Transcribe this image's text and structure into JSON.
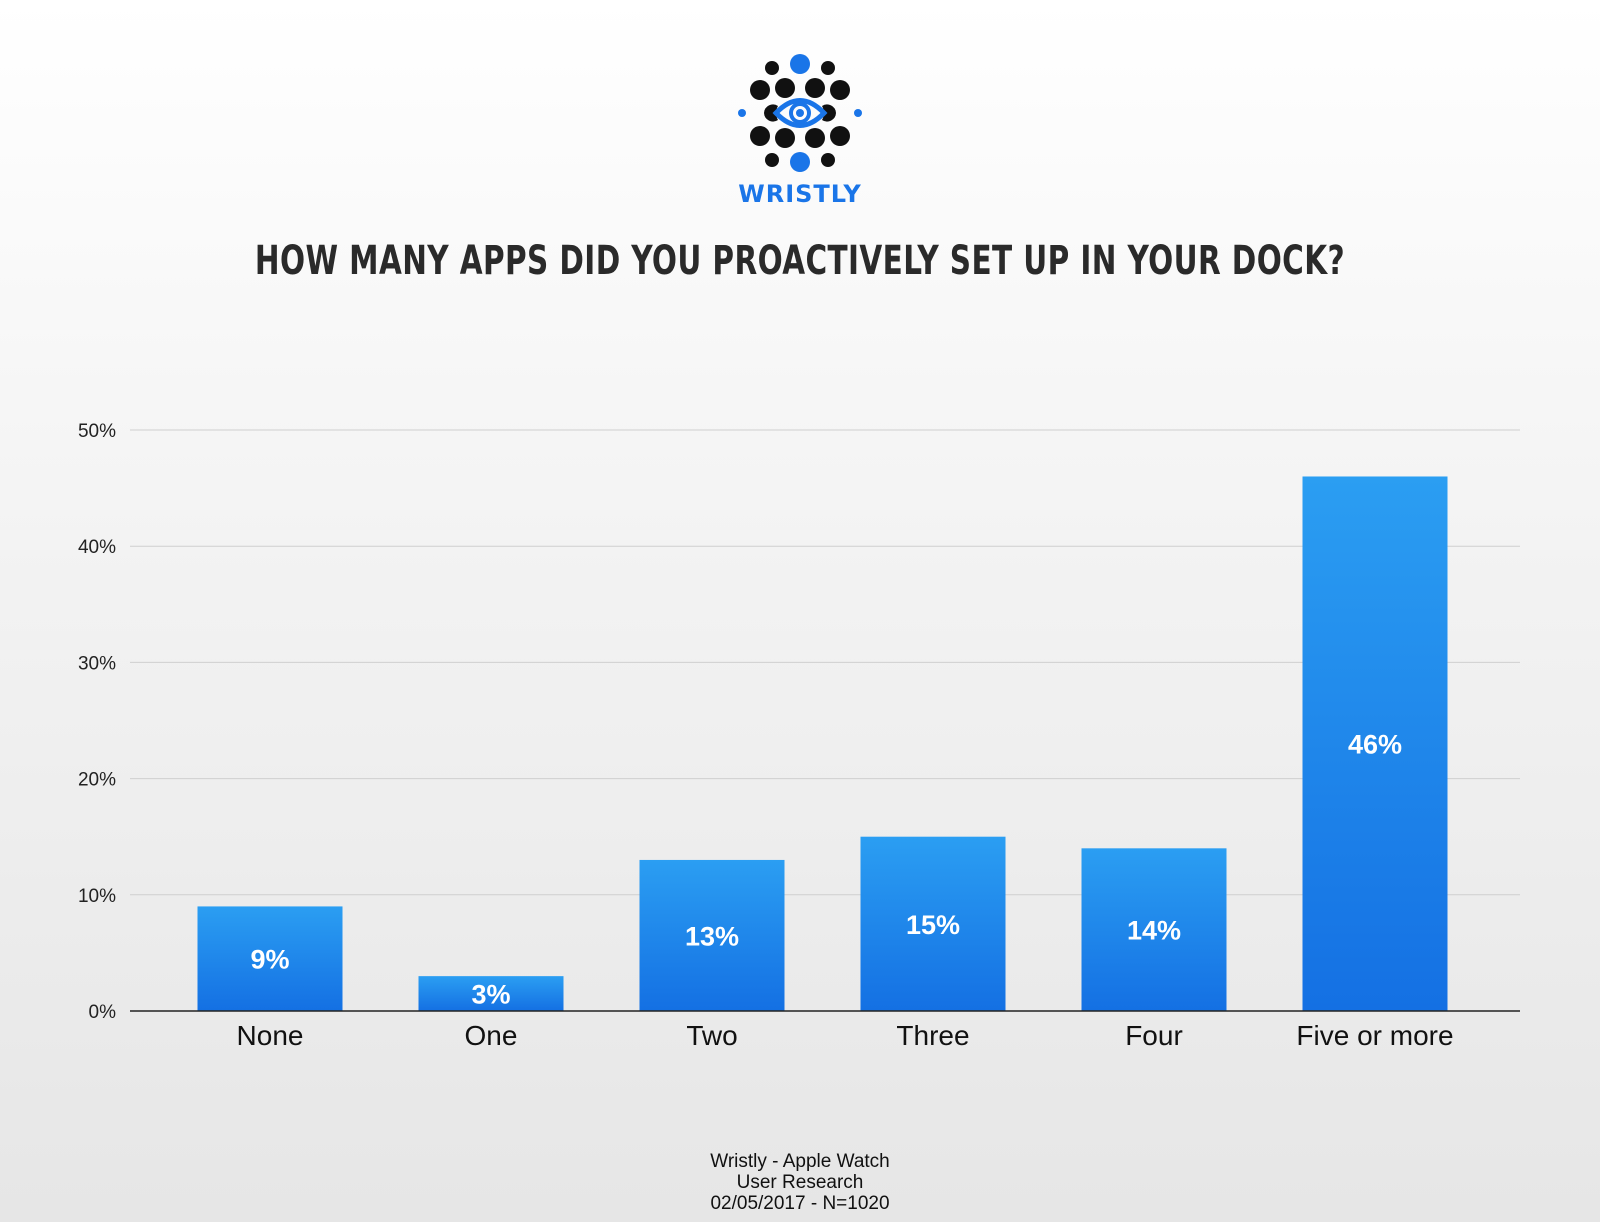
{
  "brand": {
    "name": "WRISTLY",
    "accent_color": "#1a75e8",
    "logo_icon": "eye-in-dots-logo"
  },
  "title": "HOW MANY APPS DID YOU PROACTIVELY SET UP IN YOUR DOCK?",
  "footer": {
    "line1": "Wristly - Apple Watch",
    "line2": "User Research",
    "line3": "02/05/2017 - N=1020"
  },
  "chart_data": {
    "type": "bar",
    "categories": [
      "None",
      "One",
      "Two",
      "Three",
      "Four",
      "Five or more"
    ],
    "values": [
      9,
      3,
      13,
      15,
      14,
      46
    ],
    "data_labels": [
      "9%",
      "3%",
      "13%",
      "15%",
      "14%",
      "46%"
    ],
    "ylim": [
      0,
      50
    ],
    "yticks": [
      0,
      10,
      20,
      30,
      40,
      50
    ],
    "ytick_labels": [
      "0%",
      "10%",
      "20%",
      "30%",
      "40%",
      "50%"
    ],
    "grid": true,
    "bar_color_top": "#2b9ef2",
    "bar_color_bottom": "#1470e3"
  }
}
